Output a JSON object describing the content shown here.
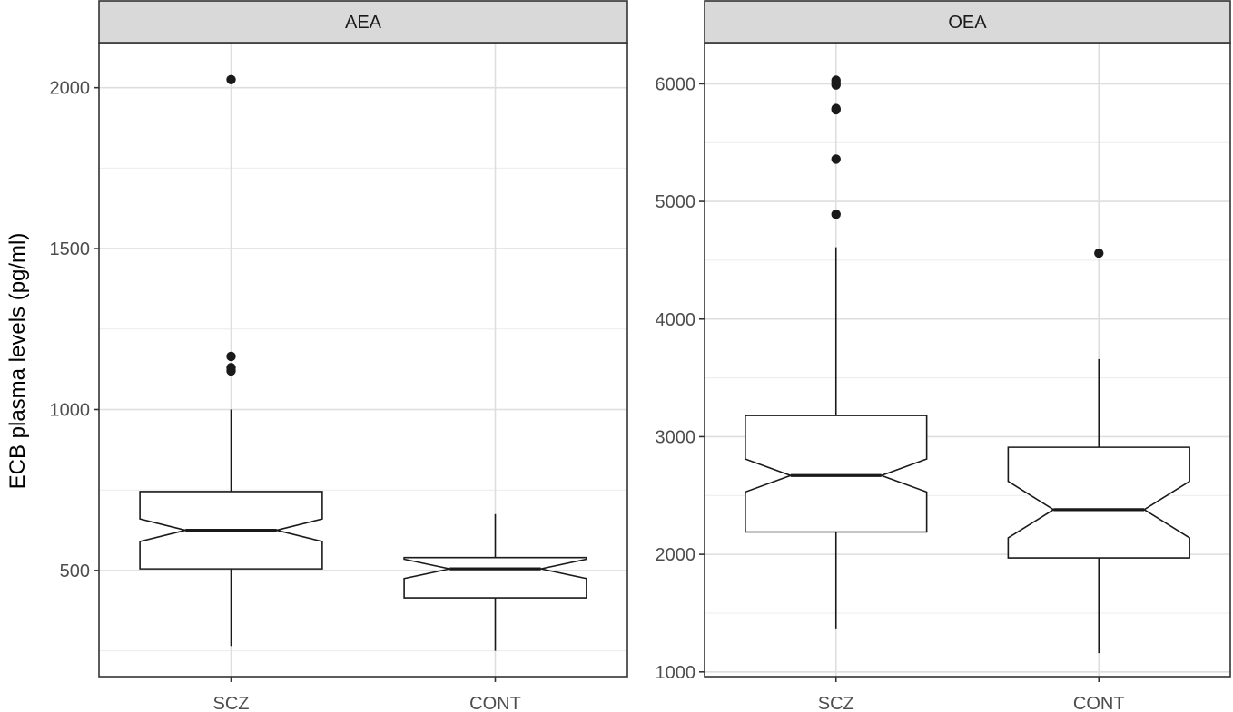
{
  "chart_data": {
    "type": "boxplot",
    "ylabel": "ECB plasma levels (pg/ml)",
    "notched": true,
    "grid": true,
    "facets": [
      {
        "name": "AEA",
        "categories": [
          "SCZ",
          "CONT"
        ],
        "ylim": [
          170,
          2140
        ],
        "major_ticks": [
          500,
          1000,
          1500,
          2000
        ],
        "boxes": [
          {
            "category": "SCZ",
            "lower_whisker": 265,
            "q1": 505,
            "median": 625,
            "q3": 745,
            "upper_whisker": 1000,
            "notch_low": 590,
            "notch_high": 660,
            "outliers": [
              1120,
              1130,
              1165,
              2025
            ]
          },
          {
            "category": "CONT",
            "lower_whisker": 250,
            "q1": 415,
            "median": 505,
            "q3": 540,
            "upper_whisker": 675,
            "notch_low": 475,
            "notch_high": 535,
            "outliers": []
          }
        ]
      },
      {
        "name": "OEA",
        "categories": [
          "SCZ",
          "CONT"
        ],
        "ylim": [
          960,
          6350
        ],
        "major_ticks": [
          1000,
          2000,
          3000,
          4000,
          5000,
          6000
        ],
        "boxes": [
          {
            "category": "SCZ",
            "lower_whisker": 1370,
            "q1": 2190,
            "median": 2670,
            "q3": 3180,
            "upper_whisker": 4610,
            "notch_low": 2530,
            "notch_high": 2810,
            "outliers": [
              4890,
              5360,
              5780,
              5790,
              5990,
              6010,
              6030
            ]
          },
          {
            "category": "CONT",
            "lower_whisker": 1160,
            "q1": 1970,
            "median": 2380,
            "q3": 2910,
            "upper_whisker": 3660,
            "notch_low": 2140,
            "notch_high": 2620,
            "outliers": [
              4560
            ]
          }
        ]
      }
    ]
  }
}
